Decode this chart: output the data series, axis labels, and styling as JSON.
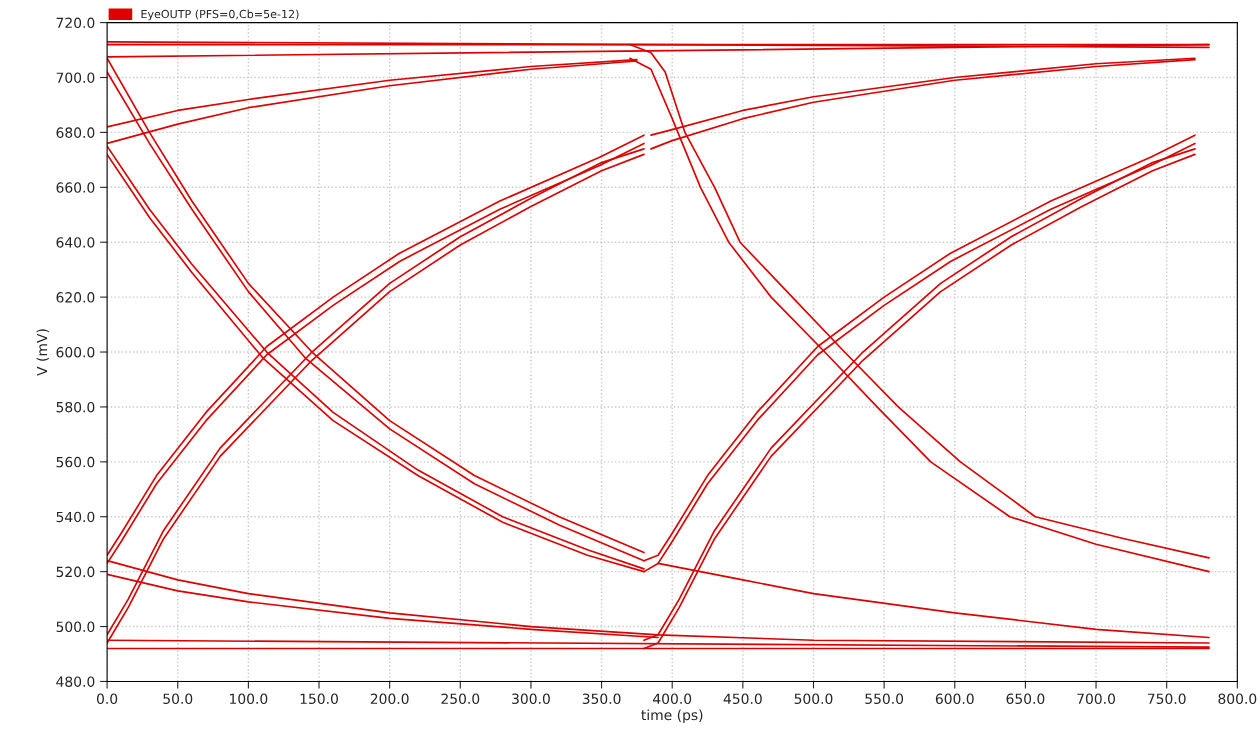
{
  "chart_data": {
    "type": "line",
    "xlabel": "time (ps)",
    "ylabel": "V (mV)",
    "legend": "top left",
    "grid": true,
    "xlim": [
      0,
      800
    ],
    "ylim": [
      480,
      720
    ],
    "xticks": [
      {
        "value": 0,
        "label": "0.0"
      },
      {
        "value": 50,
        "label": "50.0"
      },
      {
        "value": 100,
        "label": "100.0"
      },
      {
        "value": 150,
        "label": "150.0"
      },
      {
        "value": 200,
        "label": "200.0"
      },
      {
        "value": 250,
        "label": "250.0"
      },
      {
        "value": 300,
        "label": "300.0"
      },
      {
        "value": 350,
        "label": "350.0"
      },
      {
        "value": 400,
        "label": "400.0"
      },
      {
        "value": 450,
        "label": "450.0"
      },
      {
        "value": 500,
        "label": "500.0"
      },
      {
        "value": 550,
        "label": "550.0"
      },
      {
        "value": 600,
        "label": "600.0"
      },
      {
        "value": 650,
        "label": "650.0"
      },
      {
        "value": 700,
        "label": "700.0"
      },
      {
        "value": 750,
        "label": "750.0"
      },
      {
        "value": 800,
        "label": "800.0"
      }
    ],
    "yticks": [
      {
        "value": 480,
        "label": "480.0"
      },
      {
        "value": 500,
        "label": "500.0"
      },
      {
        "value": 520,
        "label": "520.0"
      },
      {
        "value": 540,
        "label": "540.0"
      },
      {
        "value": 560,
        "label": "560.0"
      },
      {
        "value": 580,
        "label": "580.0"
      },
      {
        "value": 600,
        "label": "600.0"
      },
      {
        "value": 620,
        "label": "620.0"
      },
      {
        "value": 640,
        "label": "640.0"
      },
      {
        "value": 660,
        "label": "660.0"
      },
      {
        "value": 680,
        "label": "680.0"
      },
      {
        "value": 700,
        "label": "700.0"
      },
      {
        "value": 720,
        "label": "720.0"
      }
    ],
    "series": [
      {
        "name": "EyeOUTP (PFS=0,Cb=5e-12)",
        "color": "#dd0000",
        "x": [
          0,
          780
        ],
        "values": [
          712,
          712
        ]
      },
      {
        "color": "#dd0000",
        "x": [
          0,
          780
        ],
        "values": [
          713,
          711
        ]
      },
      {
        "color": "#dd0000",
        "x": [
          0,
          780
        ],
        "values": [
          707.5,
          712
        ]
      },
      {
        "color": "#dd0000",
        "x": [
          0,
          50,
          100,
          200,
          300,
          375
        ],
        "values": [
          682,
          688,
          692,
          699,
          704,
          706.5
        ]
      },
      {
        "color": "#dd0000",
        "x": [
          0,
          50,
          100,
          200,
          300,
          375
        ],
        "values": [
          676,
          683,
          689,
          697,
          703,
          706
        ]
      },
      {
        "color": "#dd0000",
        "x": [
          385,
          400,
          450,
          500,
          600,
          700,
          770
        ],
        "values": [
          679,
          681,
          688,
          693,
          700,
          705,
          707
        ]
      },
      {
        "color": "#dd0000",
        "x": [
          385,
          400,
          450,
          500,
          600,
          700,
          770
        ],
        "values": [
          674,
          677,
          685,
          691,
          699,
          704,
          706.5
        ]
      },
      {
        "color": "#dd0000",
        "x": [
          370,
          385,
          395,
          409,
          430,
          448,
          485,
          522,
          560,
          604,
          657,
          720,
          780
        ],
        "values": [
          712,
          709,
          702,
          680,
          660,
          640,
          620,
          600,
          580,
          560,
          540,
          532,
          525
        ]
      },
      {
        "color": "#dd0000",
        "x": [
          370,
          385,
          400,
          420,
          440,
          470,
          508,
          545,
          583,
          639,
          700,
          780
        ],
        "values": [
          707,
          703,
          685,
          660,
          640,
          620,
          600,
          580,
          560,
          540,
          530,
          520
        ]
      },
      {
        "color": "#dd0000",
        "x": [
          0,
          30,
          60,
          100,
          145,
          200,
          260,
          320,
          380
        ],
        "values": [
          707,
          680,
          655,
          625,
          600,
          575,
          555,
          540,
          527
        ]
      },
      {
        "color": "#dd0000",
        "x": [
          0,
          30,
          60,
          100,
          140,
          200,
          260,
          320,
          380
        ],
        "values": [
          702,
          676,
          652,
          622,
          598,
          572,
          552,
          537,
          524
        ]
      },
      {
        "color": "#dd0000",
        "x": [
          0,
          30,
          60,
          113,
          160,
          220,
          280,
          340,
          380
        ],
        "values": [
          675,
          652,
          632,
          600,
          578,
          557,
          540,
          528,
          521
        ]
      },
      {
        "color": "#dd0000",
        "x": [
          0,
          30,
          60,
          110,
          160,
          220,
          280,
          340,
          380
        ],
        "values": [
          672,
          649,
          629,
          598,
          575,
          555,
          538,
          526,
          520
        ]
      },
      {
        "color": "#dd0000",
        "x": [
          0,
          10,
          35,
          70,
          113,
          160,
          207,
          278,
          349,
          380
        ],
        "values": [
          526,
          534,
          555,
          578,
          602,
          620,
          636,
          655,
          671,
          679
        ]
      },
      {
        "color": "#dd0000",
        "x": [
          0,
          10,
          35,
          70,
          113,
          160,
          207,
          278,
          349,
          380
        ],
        "values": [
          523,
          531,
          552,
          575,
          599,
          617,
          633,
          652,
          668,
          676
        ]
      },
      {
        "color": "#dd0000",
        "x": [
          0,
          15,
          40,
          80,
          145,
          200,
          250,
          300,
          350,
          380
        ],
        "values": [
          497,
          510,
          535,
          565,
          600,
          625,
          642,
          656,
          669,
          674
        ]
      },
      {
        "color": "#dd0000",
        "x": [
          0,
          15,
          40,
          80,
          145,
          200,
          250,
          300,
          350,
          380
        ],
        "values": [
          494,
          507,
          532,
          562,
          597,
          622,
          639,
          653,
          666,
          672
        ]
      },
      {
        "color": "#dd0000",
        "x": [
          380,
          390,
          400,
          425,
          460,
          503,
          550,
          597,
          668,
          739,
          770
        ],
        "values": [
          524,
          526,
          534,
          555,
          578,
          602,
          620,
          636,
          655,
          671,
          679
        ]
      },
      {
        "color": "#dd0000",
        "x": [
          380,
          390,
          400,
          425,
          460,
          503,
          550,
          597,
          668,
          739,
          770
        ],
        "values": [
          520,
          523,
          531,
          552,
          575,
          599,
          617,
          633,
          652,
          668,
          676
        ]
      },
      {
        "color": "#dd0000",
        "x": [
          380,
          390,
          405,
          430,
          470,
          535,
          590,
          640,
          690,
          740,
          770
        ],
        "values": [
          495,
          497,
          510,
          535,
          565,
          600,
          625,
          642,
          656,
          669,
          674
        ]
      },
      {
        "color": "#dd0000",
        "x": [
          380,
          390,
          405,
          430,
          470,
          535,
          590,
          640,
          690,
          740,
          770
        ],
        "values": [
          492,
          494,
          507,
          532,
          562,
          597,
          622,
          639,
          653,
          666,
          672
        ]
      },
      {
        "color": "#dd0000",
        "x": [
          0,
          50,
          100,
          200,
          300,
          390,
          500,
          780
        ],
        "values": [
          524,
          517,
          512,
          505,
          500,
          497,
          495,
          494
        ]
      },
      {
        "color": "#dd0000",
        "x": [
          0,
          50,
          100,
          200,
          300,
          390
        ],
        "values": [
          519,
          513,
          509,
          503,
          499,
          496
        ]
      },
      {
        "color": "#dd0000",
        "x": [
          390,
          450,
          500,
          600,
          700,
          780
        ],
        "values": [
          523,
          517,
          512,
          505,
          499,
          496
        ]
      },
      {
        "color": "#dd0000",
        "x": [
          0,
          780
        ],
        "values": [
          492,
          492
        ]
      },
      {
        "color": "#dd0000",
        "x": [
          0,
          780
        ],
        "values": [
          495,
          492.5
        ]
      }
    ]
  }
}
